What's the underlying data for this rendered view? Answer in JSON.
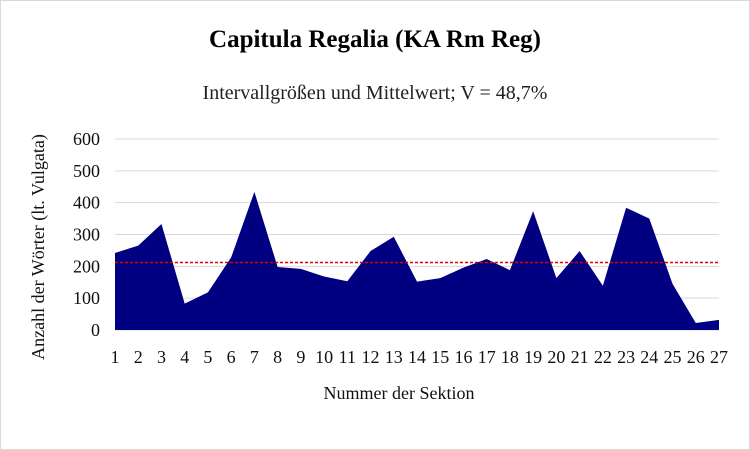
{
  "chart_data": {
    "type": "area",
    "title": "Capitula Regalia (KA Rm Reg)",
    "subtitle": "Intervallgrößen und Mittelwert; V = 48,7%",
    "xlabel": "Nummer der Sektion",
    "ylabel": "Anzahl der Wörter (lt. Vulgata)",
    "x": [
      1,
      2,
      3,
      4,
      5,
      6,
      7,
      8,
      9,
      10,
      11,
      12,
      13,
      14,
      15,
      16,
      17,
      18,
      19,
      20,
      21,
      22,
      23,
      24,
      25,
      26,
      27
    ],
    "values": [
      242,
      265,
      333,
      83,
      118,
      228,
      434,
      198,
      192,
      168,
      153,
      248,
      293,
      152,
      163,
      196,
      223,
      188,
      373,
      163,
      248,
      139,
      384,
      350,
      145,
      22,
      32
    ],
    "mean": 212,
    "ylim": [
      0,
      600
    ],
    "yticks": [
      0,
      100,
      200,
      300,
      400,
      500,
      600
    ],
    "grid": true,
    "colors": {
      "area": "#000080",
      "mean_line": "#e00000",
      "grid": "#d9d9d9"
    }
  }
}
